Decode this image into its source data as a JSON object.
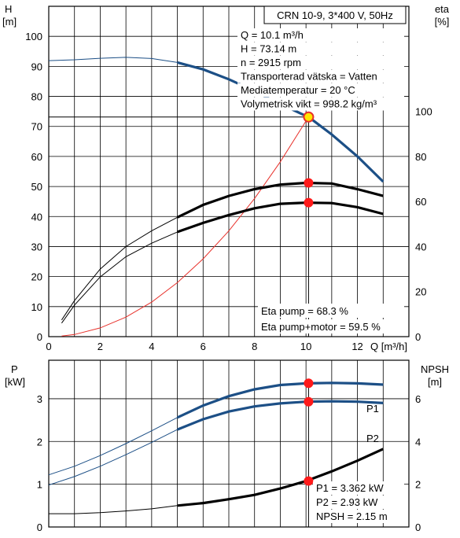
{
  "chart_data": [
    {
      "type": "line",
      "title_box": "CRN 10-9, 3*400 V, 50Hz",
      "y_left_label": [
        "H",
        "[m]"
      ],
      "y_right_label": [
        "eta",
        "[%]"
      ],
      "x_label": "Q [m³/h]",
      "xlim": [
        0,
        14
      ],
      "ylim_left": [
        0,
        110
      ],
      "ylim_right": [
        0,
        146.7
      ],
      "x_ticks": [
        0,
        2,
        4,
        6,
        8,
        10,
        12
      ],
      "y_left_ticks": [
        0,
        10,
        20,
        30,
        40,
        50,
        60,
        70,
        80,
        90,
        100
      ],
      "y_right_ticks": [
        0,
        20,
        40,
        60,
        80,
        100
      ],
      "grid": true,
      "info_lines": [
        "Q = 10.1 m³/h",
        "H = 73.14 m",
        "n = 2915 rpm",
        "Transporterad vätska = Vatten",
        "Mediatemperatur = 20 °C",
        "Volymetrisk vikt = 998.2 kg/m³"
      ],
      "eta_lines": [
        "Eta pump = 68.3 %",
        "Eta pump+motor = 59.5 %"
      ],
      "operating_point": {
        "Q": 10.1,
        "H": 73.14,
        "eta_pump": 68.3,
        "eta_total": 59.5
      },
      "series": [
        {
          "key": "H",
          "axis": "left",
          "color": "#1c4f86",
          "x": [
            0,
            1,
            2,
            3,
            4,
            5,
            6,
            7,
            8,
            9,
            10,
            10.1,
            11,
            12,
            13
          ],
          "y": [
            91.9,
            92.2,
            92.7,
            93.0,
            92.6,
            91.3,
            89.0,
            85.7,
            81.8,
            77.5,
            73.5,
            73.14,
            67.3,
            60.0,
            51.6
          ],
          "thin_until": 5
        },
        {
          "key": "system",
          "axis": "left",
          "color": "#e8312b",
          "x": [
            0.5,
            1,
            2,
            3,
            4,
            5,
            6,
            7,
            8,
            9,
            10,
            10.1
          ],
          "y": [
            0.2,
            0.7,
            2.9,
            6.5,
            11.5,
            18.0,
            25.9,
            35.2,
            46.0,
            58.2,
            71.8,
            73.14
          ]
        },
        {
          "key": "eta_pump",
          "axis": "right",
          "color": "#000000",
          "x": [
            0.5,
            1,
            2,
            3,
            4,
            5,
            6,
            7,
            8,
            9,
            10,
            11,
            12,
            13
          ],
          "y": [
            7.4,
            16.0,
            30.0,
            40.0,
            47.0,
            53.0,
            58.5,
            62.5,
            65.5,
            67.5,
            68.3,
            68.0,
            65.5,
            62.5
          ],
          "thin_until": 5
        },
        {
          "key": "eta_total",
          "axis": "right",
          "color": "#000000",
          "x": [
            0.5,
            1,
            2,
            3,
            4,
            5,
            6,
            7,
            8,
            9,
            10,
            11,
            12,
            13
          ],
          "y": [
            6.0,
            14.0,
            26.5,
            35.5,
            41.5,
            46.5,
            50.5,
            54.0,
            57.0,
            59.0,
            59.5,
            59.3,
            57.5,
            54.5
          ],
          "thin_until": 5
        }
      ]
    },
    {
      "type": "line",
      "y_left_label": [
        "P",
        "[kW]"
      ],
      "y_right_label": [
        "NPSH",
        "[m]"
      ],
      "xlim": [
        0,
        14
      ],
      "ylim_left": [
        0,
        3.9
      ],
      "ylim_right": [
        0,
        7.8
      ],
      "y_left_ticks": [
        0,
        1,
        2,
        3
      ],
      "y_right_ticks": [
        0,
        2,
        4,
        6
      ],
      "grid": true,
      "info_lines": [
        "P1 = 3.362 kW",
        "P2 = 2.93 kW",
        "NPSH = 2.15 m"
      ],
      "operating_point": {
        "Q": 10.1,
        "P1": 3.362,
        "P2": 2.93,
        "NPSH": 2.15
      },
      "series": [
        {
          "key": "P1",
          "name": "P1",
          "axis": "left",
          "color": "#1c4f86",
          "x": [
            0,
            1,
            2,
            3,
            4,
            5,
            6,
            7,
            8,
            9,
            10,
            11,
            12,
            13
          ],
          "y": [
            1.22,
            1.42,
            1.67,
            1.95,
            2.25,
            2.56,
            2.84,
            3.06,
            3.22,
            3.32,
            3.36,
            3.37,
            3.36,
            3.33
          ],
          "thin_until": 5
        },
        {
          "key": "P2",
          "name": "P2",
          "axis": "left",
          "color": "#1c4f86",
          "x": [
            0,
            1,
            2,
            3,
            4,
            5,
            6,
            7,
            8,
            9,
            10,
            11,
            12,
            13
          ],
          "y": [
            0.98,
            1.18,
            1.42,
            1.69,
            1.98,
            2.28,
            2.52,
            2.7,
            2.82,
            2.89,
            2.93,
            2.94,
            2.93,
            2.9
          ],
          "thin_until": 5
        },
        {
          "key": "NPSH",
          "axis": "right",
          "color": "#000000",
          "x": [
            0,
            1,
            2,
            3,
            4,
            5,
            6,
            7,
            8,
            9,
            10,
            11,
            12,
            13
          ],
          "y": [
            0.62,
            0.62,
            0.67,
            0.75,
            0.85,
            1.0,
            1.12,
            1.3,
            1.5,
            1.8,
            2.15,
            2.6,
            3.1,
            3.65
          ],
          "thin_until": 5
        }
      ]
    }
  ]
}
